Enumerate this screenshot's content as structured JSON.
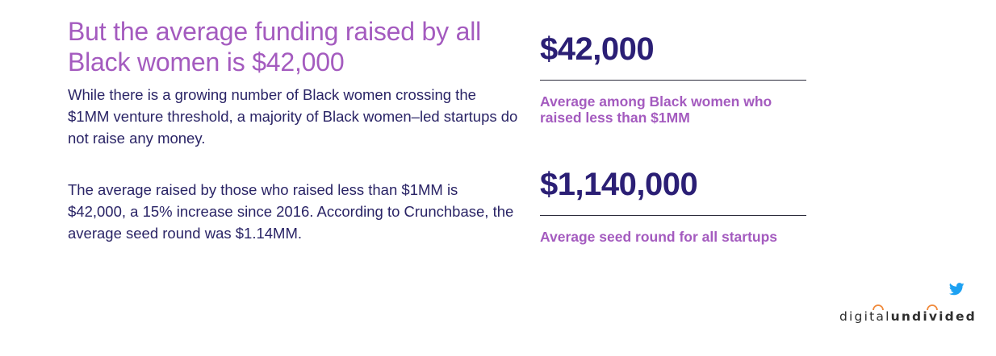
{
  "headline": "But the average funding raised by all Black women is $42,000",
  "paragraph1": "While there is a growing number of Black women crossing the $1MM venture threshold, a majority of Black women–led startups do not raise any money.",
  "paragraph2": "The average raised by those who raised less than $1MM is $42,000, a 15% increase since 2016. According to Crunchbase, the average seed round was $1.14MM.",
  "stats": [
    {
      "value": "$42,000",
      "label": "Average among Black women who raised less than $1MM"
    },
    {
      "value": "$1,140,000",
      "label": "Average seed round for all startups"
    }
  ],
  "logo": {
    "part1": "digital",
    "part2": "undivided"
  },
  "icons": {
    "share": "twitter-bird-icon"
  },
  "colors": {
    "accent_purple": "#a45bbf",
    "navy": "#2b1f75",
    "twitter_blue": "#1da1f2",
    "logo_orange": "#f08a3c"
  }
}
